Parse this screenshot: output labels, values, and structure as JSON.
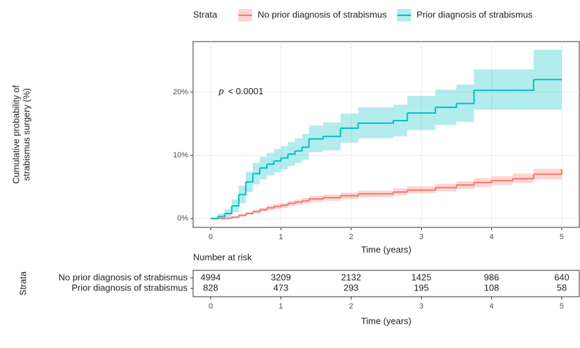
{
  "chart_data": [
    {
      "type": "line",
      "step": true,
      "ylabel_lines": [
        "Cumulative probability of",
        "strabismus surgery (%)"
      ],
      "xlabel": "Time (years)",
      "legend_title": "Strata",
      "legend": "top",
      "grid": true,
      "annotation": {
        "italic": "p",
        "text": "< 0.0001"
      },
      "x": [
        0,
        0.1,
        0.2,
        0.3,
        0.4,
        0.5,
        0.6,
        0.7,
        0.8,
        0.9,
        1.0,
        1.1,
        1.2,
        1.3,
        1.4,
        1.6,
        1.85,
        2.1,
        2.6,
        2.8,
        3.2,
        3.5,
        3.75,
        4.0,
        4.3,
        4.6,
        5.0
      ],
      "series": [
        {
          "name": "No prior diagnosis of strabismus",
          "color": "#f8766d",
          "values": [
            0,
            0,
            0.05,
            0.2,
            0.5,
            0.8,
            1.1,
            1.4,
            1.7,
            1.9,
            2.1,
            2.4,
            2.6,
            2.8,
            3.1,
            3.3,
            3.6,
            3.9,
            4.2,
            4.5,
            4.9,
            5.3,
            5.7,
            6.0,
            6.3,
            7.0,
            7.8
          ],
          "lower": [
            0,
            0,
            0,
            0.1,
            0.3,
            0.6,
            0.8,
            1.1,
            1.3,
            1.5,
            1.7,
            2,
            2.2,
            2.4,
            2.6,
            2.8,
            3.1,
            3.4,
            3.7,
            4,
            4.3,
            4.7,
            5,
            5.3,
            5.6,
            6.2,
            6.8
          ],
          "upper": [
            0,
            0.1,
            0.15,
            0.35,
            0.7,
            1.0,
            1.4,
            1.7,
            2.1,
            2.3,
            2.5,
            2.8,
            3.0,
            3.3,
            3.6,
            3.8,
            4.1,
            4.4,
            4.8,
            5.1,
            5.5,
            5.9,
            6.4,
            6.7,
            7.1,
            7.9,
            8.9
          ]
        },
        {
          "name": "Prior diagnosis of strabismus",
          "color": "#00bfc4",
          "values": [
            0,
            0.3,
            0.8,
            2,
            3.8,
            5.8,
            7.1,
            8,
            8.6,
            9.1,
            9.6,
            10.2,
            10.7,
            11.3,
            12.6,
            13.0,
            14.3,
            15.1,
            15.5,
            16.7,
            17.6,
            18.2,
            20.3,
            20.3,
            20.3,
            22.0,
            22.0
          ],
          "lower": [
            0,
            0,
            0.2,
            1,
            2.4,
            4.2,
            5.4,
            6.2,
            6.8,
            7.3,
            7.8,
            8.3,
            8.8,
            9.3,
            10.5,
            10.8,
            12,
            12.7,
            13,
            14,
            14.8,
            15.3,
            17.2,
            17.2,
            17.2,
            17.2,
            17.2
          ],
          "upper": [
            0,
            0.8,
            1.5,
            3,
            5.2,
            7.4,
            8.8,
            9.8,
            10.4,
            11,
            11.5,
            12.1,
            12.7,
            13.4,
            14.7,
            15.2,
            16.6,
            17.6,
            18,
            19.4,
            20.4,
            21.2,
            23.6,
            23.6,
            23.6,
            26.7,
            26.7
          ]
        }
      ],
      "xlim": [
        -0.25,
        5.25
      ],
      "xticks": [
        0,
        1,
        2,
        3,
        4,
        5
      ],
      "ylim": [
        -1.4,
        28
      ],
      "yticks": [
        {
          "value": 0,
          "label": "0%"
        },
        {
          "value": 10,
          "label": "10%"
        },
        {
          "value": 20,
          "label": "20%"
        }
      ]
    },
    {
      "type": "table",
      "title": "Number at risk",
      "ylabel": "Strata",
      "xlabel": "Time (years)",
      "xlim": [
        -0.25,
        5.25
      ],
      "xticks": [
        0,
        1,
        2,
        3,
        4,
        5
      ],
      "rows": [
        {
          "name": "No prior diagnosis of strabismus",
          "color": "#f8766d",
          "values": [
            4994,
            3209,
            2132,
            1425,
            986,
            640
          ]
        },
        {
          "name": "Prior diagnosis of strabismus",
          "color": "#00bfc4",
          "values": [
            828,
            473,
            293,
            195,
            108,
            58
          ]
        }
      ]
    }
  ]
}
